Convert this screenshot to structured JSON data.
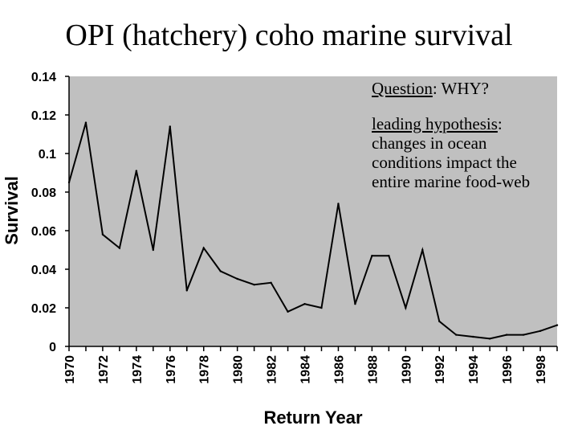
{
  "title": "OPI (hatchery) coho marine survival",
  "chart_data": {
    "type": "line",
    "ylabel": "Survival",
    "xlabel": "Return Year",
    "ylim": [
      0,
      0.14
    ],
    "yticks": [
      "0",
      "0.02",
      "0.04",
      "0.06",
      "0.08",
      "0.1",
      "0.12",
      "0.14"
    ],
    "xlim": [
      1970,
      1999
    ],
    "xticks": [
      "1970",
      "1972",
      "1974",
      "1976",
      "1978",
      "1980",
      "1982",
      "1984",
      "1986",
      "1988",
      "1990",
      "1992",
      "1994",
      "1996",
      "1998"
    ],
    "plot_background": "#c0c0c0",
    "line_color": "#000000",
    "x": [
      1970,
      1971,
      1972,
      1973,
      1974,
      1975,
      1976,
      1977,
      1978,
      1979,
      1980,
      1981,
      1982,
      1983,
      1984,
      1985,
      1986,
      1987,
      1988,
      1989,
      1990,
      1991,
      1992,
      1993,
      1994,
      1995,
      1996,
      1997,
      1998,
      1999
    ],
    "values": [
      0.085,
      0.116,
      0.058,
      0.051,
      0.091,
      0.05,
      0.114,
      0.029,
      0.051,
      0.039,
      0.035,
      0.032,
      0.033,
      0.018,
      0.022,
      0.02,
      0.074,
      0.022,
      0.047,
      0.047,
      0.02,
      0.05,
      0.013,
      0.006,
      0.005,
      0.004,
      0.006,
      0.006,
      0.008,
      0.011
    ]
  },
  "annotations": {
    "question_label": "Question",
    "question_text": ": WHY?",
    "hypothesis_label": "leading hypothesis",
    "hypothesis_text": ": changes in ocean conditions impact the entire marine food-web"
  }
}
